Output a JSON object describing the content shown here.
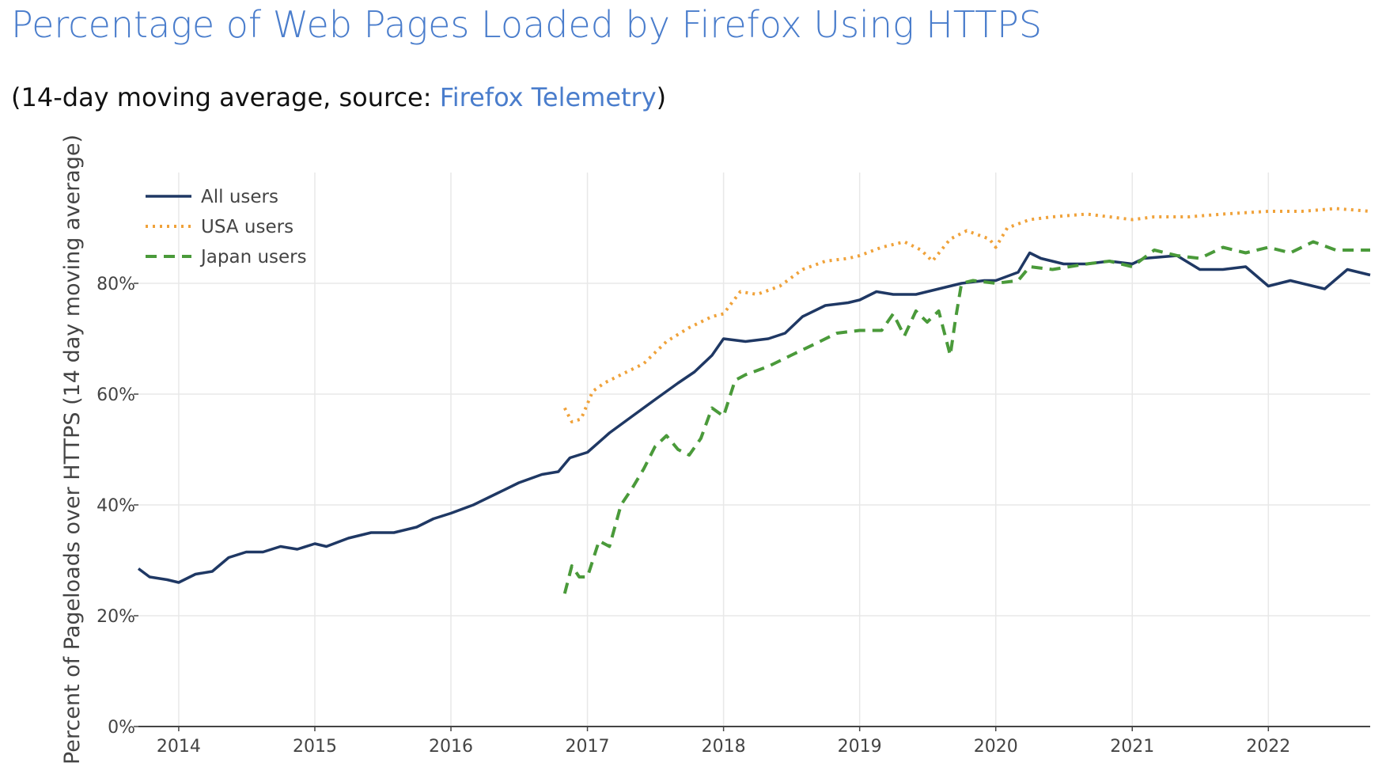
{
  "title": "Percentage of Web Pages Loaded by Firefox Using HTTPS",
  "subtitle": {
    "prefix": "(14-day moving average, source: ",
    "link": "Firefox Telemetry",
    "suffix": ")"
  },
  "chart_data": {
    "type": "line",
    "ylabel": "Percent of Pageloads over HTTPS (14 day moving average)",
    "xlabel": "",
    "xlim": [
      "2013-09-15",
      "2022-10-01"
    ],
    "ylim": [
      0,
      100
    ],
    "x_ticks": [
      "2014",
      "2015",
      "2016",
      "2017",
      "2018",
      "2019",
      "2020",
      "2021",
      "2022"
    ],
    "y_ticks": [
      "0%",
      "20%",
      "40%",
      "60%",
      "80%"
    ],
    "y_tick_values": [
      0,
      20,
      40,
      60,
      80
    ],
    "grid": true,
    "legend_position": "top-left",
    "series": [
      {
        "name": "All users",
        "color": "#1f3864",
        "dash": "solid",
        "points": [
          [
            "2013-09-15",
            28.5
          ],
          [
            "2013-10-15",
            27
          ],
          [
            "2013-12-01",
            26.5
          ],
          [
            "2014-01-01",
            26
          ],
          [
            "2014-02-15",
            27.5
          ],
          [
            "2014-04-01",
            28
          ],
          [
            "2014-05-15",
            30.5
          ],
          [
            "2014-07-01",
            31.5
          ],
          [
            "2014-08-15",
            31.5
          ],
          [
            "2014-10-01",
            32.5
          ],
          [
            "2014-11-15",
            32
          ],
          [
            "2015-01-01",
            33
          ],
          [
            "2015-02-01",
            32.5
          ],
          [
            "2015-04-01",
            34
          ],
          [
            "2015-06-01",
            35
          ],
          [
            "2015-08-01",
            35
          ],
          [
            "2015-10-01",
            36
          ],
          [
            "2015-11-15",
            37.5
          ],
          [
            "2016-01-01",
            38.5
          ],
          [
            "2016-03-01",
            40
          ],
          [
            "2016-05-01",
            42
          ],
          [
            "2016-07-01",
            44
          ],
          [
            "2016-09-01",
            45.5
          ],
          [
            "2016-10-15",
            46
          ],
          [
            "2016-11-15",
            48.5
          ],
          [
            "2017-01-01",
            49.5
          ],
          [
            "2017-03-01",
            53
          ],
          [
            "2017-05-01",
            56
          ],
          [
            "2017-07-01",
            59
          ],
          [
            "2017-09-01",
            62
          ],
          [
            "2017-10-15",
            64
          ],
          [
            "2017-12-01",
            67
          ],
          [
            "2018-01-01",
            70
          ],
          [
            "2018-03-01",
            69.5
          ],
          [
            "2018-05-01",
            70
          ],
          [
            "2018-06-15",
            71
          ],
          [
            "2018-08-01",
            74
          ],
          [
            "2018-10-01",
            76
          ],
          [
            "2018-12-01",
            76.5
          ],
          [
            "2019-01-01",
            77
          ],
          [
            "2019-02-15",
            78.5
          ],
          [
            "2019-04-01",
            78
          ],
          [
            "2019-06-01",
            78
          ],
          [
            "2019-08-01",
            79
          ],
          [
            "2019-10-01",
            80
          ],
          [
            "2019-12-01",
            80.5
          ],
          [
            "2020-01-01",
            80.5
          ],
          [
            "2020-03-01",
            82
          ],
          [
            "2020-04-01",
            85.5
          ],
          [
            "2020-05-01",
            84.5
          ],
          [
            "2020-07-01",
            83.5
          ],
          [
            "2020-09-01",
            83.5
          ],
          [
            "2020-11-01",
            84
          ],
          [
            "2021-01-01",
            83.5
          ],
          [
            "2021-02-01",
            84.5
          ],
          [
            "2021-05-01",
            85
          ],
          [
            "2021-07-01",
            82.5
          ],
          [
            "2021-09-01",
            82.5
          ],
          [
            "2021-11-01",
            83
          ],
          [
            "2022-01-01",
            79.5
          ],
          [
            "2022-03-01",
            80.5
          ],
          [
            "2022-05-01",
            79.5
          ],
          [
            "2022-06-01",
            79
          ],
          [
            "2022-08-01",
            82.5
          ],
          [
            "2022-10-01",
            81.5
          ]
        ]
      },
      {
        "name": "USA users",
        "color": "#f0a23a",
        "dash": "dot",
        "points": [
          [
            "2016-11-01",
            57.5
          ],
          [
            "2016-11-20",
            55
          ],
          [
            "2016-12-15",
            55.5
          ],
          [
            "2017-01-15",
            60.5
          ],
          [
            "2017-02-15",
            62
          ],
          [
            "2017-04-01",
            63.5
          ],
          [
            "2017-06-01",
            65.5
          ],
          [
            "2017-08-01",
            69.5
          ],
          [
            "2017-10-01",
            72
          ],
          [
            "2017-12-01",
            74
          ],
          [
            "2018-01-01",
            74.5
          ],
          [
            "2018-02-15",
            78.5
          ],
          [
            "2018-04-01",
            78
          ],
          [
            "2018-06-01",
            79.5
          ],
          [
            "2018-08-01",
            82.5
          ],
          [
            "2018-10-01",
            84
          ],
          [
            "2018-12-01",
            84.5
          ],
          [
            "2019-01-01",
            85
          ],
          [
            "2019-03-01",
            86.5
          ],
          [
            "2019-05-01",
            87.5
          ],
          [
            "2019-06-15",
            86
          ],
          [
            "2019-07-15",
            84
          ],
          [
            "2019-09-01",
            88
          ],
          [
            "2019-10-15",
            89.5
          ],
          [
            "2019-12-15",
            88
          ],
          [
            "2020-01-01",
            86.5
          ],
          [
            "2020-02-01",
            90
          ],
          [
            "2020-04-01",
            91.5
          ],
          [
            "2020-06-01",
            92
          ],
          [
            "2020-09-01",
            92.5
          ],
          [
            "2021-01-01",
            91.5
          ],
          [
            "2021-03-01",
            92
          ],
          [
            "2021-06-01",
            92
          ],
          [
            "2021-09-01",
            92.5
          ],
          [
            "2022-01-01",
            93
          ],
          [
            "2022-04-01",
            93
          ],
          [
            "2022-07-01",
            93.5
          ],
          [
            "2022-10-01",
            93
          ]
        ]
      },
      {
        "name": "Japan users",
        "color": "#4a9a3a",
        "dash": "dash",
        "points": [
          [
            "2016-11-01",
            24
          ],
          [
            "2016-11-20",
            29
          ],
          [
            "2016-12-10",
            27
          ],
          [
            "2017-01-01",
            27
          ],
          [
            "2017-02-01",
            33.5
          ],
          [
            "2017-03-01",
            32.5
          ],
          [
            "2017-04-01",
            40
          ],
          [
            "2017-05-01",
            43
          ],
          [
            "2017-06-01",
            46.5
          ],
          [
            "2017-07-01",
            50.5
          ],
          [
            "2017-08-01",
            52.5
          ],
          [
            "2017-09-01",
            50
          ],
          [
            "2017-10-01",
            49
          ],
          [
            "2017-11-01",
            52
          ],
          [
            "2017-12-01",
            57.5
          ],
          [
            "2018-01-01",
            56
          ],
          [
            "2018-02-01",
            62.5
          ],
          [
            "2018-03-01",
            63.5
          ],
          [
            "2018-05-01",
            65
          ],
          [
            "2018-07-01",
            67
          ],
          [
            "2018-09-01",
            69
          ],
          [
            "2018-11-01",
            71
          ],
          [
            "2019-01-01",
            71.5
          ],
          [
            "2019-03-01",
            71.5
          ],
          [
            "2019-04-01",
            74.5
          ],
          [
            "2019-05-01",
            70.5
          ],
          [
            "2019-06-01",
            75
          ],
          [
            "2019-07-01",
            73
          ],
          [
            "2019-08-01",
            75
          ],
          [
            "2019-09-01",
            67
          ],
          [
            "2019-09-15",
            73.5
          ],
          [
            "2019-10-01",
            80
          ],
          [
            "2019-11-01",
            80.5
          ],
          [
            "2020-01-01",
            80
          ],
          [
            "2020-03-01",
            80.5
          ],
          [
            "2020-04-01",
            83
          ],
          [
            "2020-06-01",
            82.5
          ],
          [
            "2020-09-01",
            83.5
          ],
          [
            "2020-11-01",
            84
          ],
          [
            "2021-01-01",
            83
          ],
          [
            "2021-03-01",
            86
          ],
          [
            "2021-05-01",
            85
          ],
          [
            "2021-07-01",
            84.5
          ],
          [
            "2021-09-01",
            86.5
          ],
          [
            "2021-11-01",
            85.5
          ],
          [
            "2022-01-01",
            86.5
          ],
          [
            "2022-03-01",
            85.5
          ],
          [
            "2022-05-01",
            87.5
          ],
          [
            "2022-07-01",
            86
          ],
          [
            "2022-10-01",
            86
          ]
        ]
      }
    ]
  }
}
